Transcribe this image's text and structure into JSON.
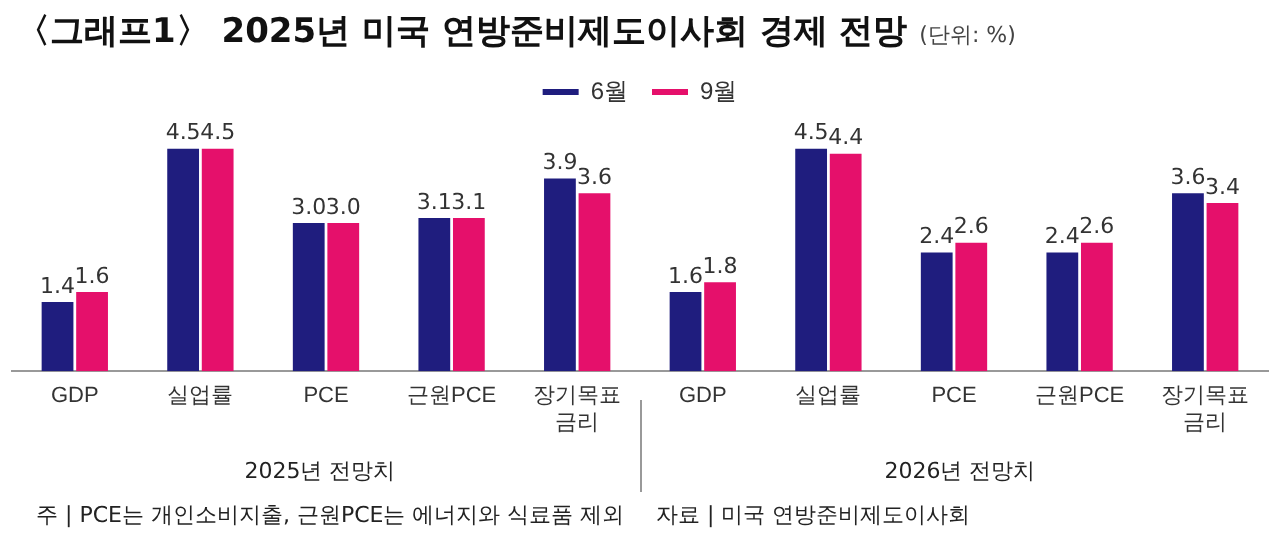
{
  "chart_data": {
    "type": "bar",
    "title": "〈그래프1〉 2025년 미국 연방준비제도이사회 경제 전망",
    "subtitle": "(단위: %)",
    "categories": [
      "GDP",
      "실업률",
      "PCE",
      "근원PCE",
      "장기목표\n금리",
      "GDP",
      "실업률",
      "PCE",
      "근원PCE",
      "장기목표\n금리"
    ],
    "legend": "top",
    "grid": false,
    "series": [
      {
        "name": "6월",
        "color": "#1f1d7e",
        "values": [
          1.4,
          4.5,
          3.0,
          3.1,
          3.9,
          1.6,
          4.5,
          2.4,
          2.4,
          3.6
        ],
        "value_labels": [
          "1.4",
          "4.5",
          "3.0",
          "3.1",
          "3.9",
          "1.6",
          "4.5",
          "2.4",
          "2.4",
          "3.6"
        ]
      },
      {
        "name": "9월",
        "color": "#e5106b",
        "values": [
          1.6,
          4.5,
          3.0,
          3.1,
          3.6,
          1.8,
          4.4,
          2.6,
          2.6,
          3.4
        ],
        "value_labels": [
          "1.6",
          "4.5",
          "3.0",
          "3.1",
          "3.6",
          "1.8",
          "4.4",
          "2.6",
          "2.6",
          "3.4"
        ]
      }
    ],
    "annotations": [
      "2025년 전망치",
      "2026년 전망치",
      "주 | PCE는 개인소비지출, 근원PCE는 에너지와 식료품 제외",
      "자료 | 미국 연방준비제도이사회"
    ]
  }
}
